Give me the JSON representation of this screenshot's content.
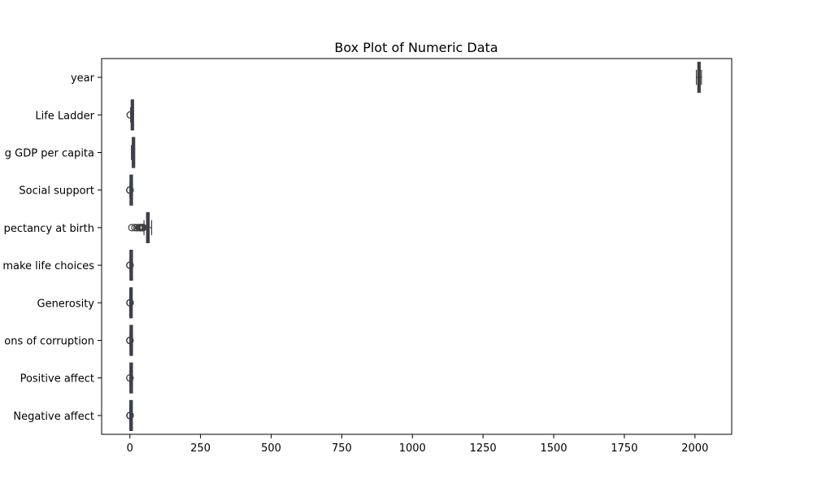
{
  "chart_data": {
    "type": "box",
    "orientation": "horizontal",
    "title": "Box Plot of Numeric Data",
    "xlabel": "",
    "ylabel": "",
    "xlim": [
      -100,
      2130
    ],
    "xticks": [
      0,
      250,
      500,
      750,
      1000,
      1250,
      1500,
      1750,
      2000
    ],
    "grid": false,
    "categories": [
      "year",
      "Life Ladder",
      "Log GDP per capita",
      "Social support",
      "Healthy life expectancy at birth",
      "Freedom to make life choices",
      "Generosity",
      "Perceptions of corruption",
      "Positive affect",
      "Negative affect"
    ],
    "category_labels_visible": [
      "year",
      "Life Ladder",
      "g GDP per capita",
      "Social support",
      "pectancy at birth",
      "make life choices",
      "Generosity",
      "ons of corruption",
      "Positive affect",
      "Negative affect"
    ],
    "boxes": [
      {
        "label": "year",
        "whislo": 2005,
        "q1": 2010,
        "med": 2014,
        "q3": 2018,
        "whishi": 2023,
        "fliers": []
      },
      {
        "label": "Life Ladder",
        "whislo": 2.6,
        "q1": 4.6,
        "med": 5.4,
        "q3": 6.3,
        "whishi": 8.0,
        "fliers": [
          1.3,
          1.5
        ]
      },
      {
        "label": "Log GDP per capita",
        "whislo": 5.5,
        "q1": 8.5,
        "med": 9.5,
        "q3": 10.4,
        "whishi": 11.7,
        "fliers": []
      },
      {
        "label": "Social support",
        "whislo": 0.3,
        "q1": 0.74,
        "med": 0.83,
        "q3": 0.9,
        "whishi": 0.99,
        "fliers": [
          0.0,
          0.1,
          0.2,
          0.25,
          0.28
        ]
      },
      {
        "label": "Healthy life expectancy at birth",
        "whislo": 50,
        "q1": 59,
        "med": 65,
        "q3": 68.5,
        "whishi": 77,
        "fliers": [
          7,
          18,
          25,
          32,
          35,
          38,
          40,
          43,
          45,
          47
        ]
      },
      {
        "label": "Freedom to make life choices",
        "whislo": 0.3,
        "q1": 0.66,
        "med": 0.77,
        "q3": 0.86,
        "whishi": 0.99,
        "fliers": [
          0.23,
          0.25,
          0.26
        ]
      },
      {
        "label": "Generosity",
        "whislo": -0.34,
        "q1": -0.11,
        "med": -0.02,
        "q3": 0.09,
        "whishi": 0.39,
        "fliers": [
          0.42,
          0.5,
          0.6,
          0.7
        ]
      },
      {
        "label": "Perceptions of corruption",
        "whislo": 0.4,
        "q1": 0.69,
        "med": 0.8,
        "q3": 0.87,
        "whishi": 0.98,
        "fliers": [
          0.03,
          0.1,
          0.2,
          0.3
        ]
      },
      {
        "label": "Positive affect",
        "whislo": 0.3,
        "q1": 0.57,
        "med": 0.66,
        "q3": 0.74,
        "whishi": 0.88,
        "fliers": [
          0.18,
          0.22
        ]
      },
      {
        "label": "Negative affect",
        "whislo": 0.08,
        "q1": 0.21,
        "med": 0.26,
        "q3": 0.32,
        "whishi": 0.48,
        "fliers": [
          0.5,
          0.55,
          0.6,
          0.65,
          0.7
        ]
      }
    ],
    "colors": {
      "axis": "#000000",
      "box_edge": "#3f3f3f",
      "box_fill": "#3a4068",
      "flier_edge": "#3f3f3f"
    }
  }
}
